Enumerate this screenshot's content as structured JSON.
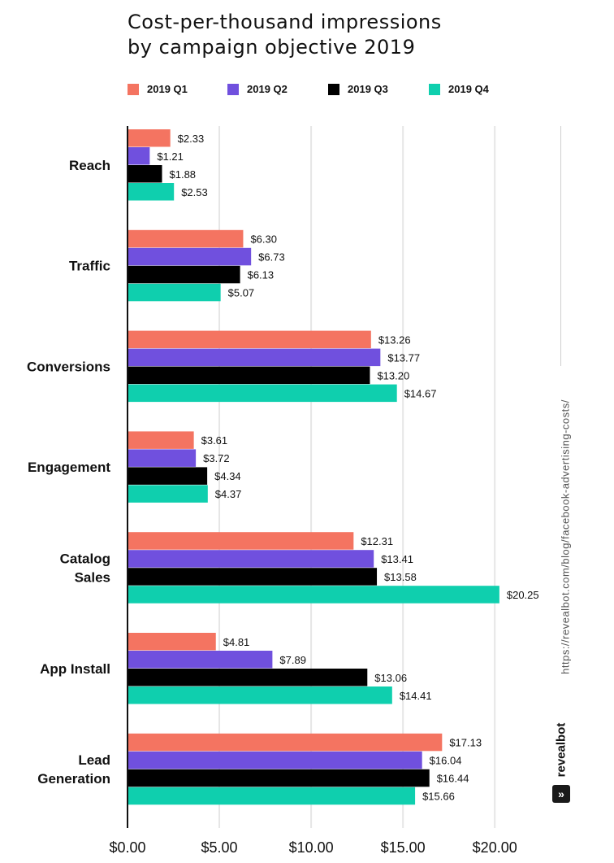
{
  "chart_data": {
    "type": "bar",
    "orientation": "horizontal",
    "title": "Cost-per-thousand impressions by campaign objective 2019",
    "title_lines": [
      "Cost-per-thousand impressions",
      "by campaign objective 2019"
    ],
    "categories": [
      [
        "Reach"
      ],
      [
        "Traffic"
      ],
      [
        "Conversions"
      ],
      [
        "Engagement"
      ],
      [
        "Catalog",
        "Sales"
      ],
      [
        "App Install"
      ],
      [
        "Lead",
        "Generation"
      ]
    ],
    "series": [
      {
        "name": "2019 Q1",
        "color": "#f47461",
        "values": [
          2.33,
          6.3,
          13.26,
          3.61,
          12.31,
          4.81,
          17.13
        ],
        "labels": [
          "$2.33",
          "$6.30",
          "$13.26",
          "$3.61",
          "$12.31",
          "$4.81",
          "$17.13"
        ]
      },
      {
        "name": "2019 Q2",
        "color": "#7050de",
        "values": [
          1.21,
          6.73,
          13.77,
          3.72,
          13.41,
          7.89,
          16.04
        ],
        "labels": [
          "$1.21",
          "$6.73",
          "$13.77",
          "$3.72",
          "$13.41",
          "$7.89",
          "$16.04"
        ]
      },
      {
        "name": "2019 Q3",
        "color": "#000000",
        "values": [
          1.88,
          6.13,
          13.2,
          4.34,
          13.58,
          13.06,
          16.44
        ],
        "labels": [
          "$1.88",
          "$6.13",
          "$13.20",
          "$4.34",
          "$13.58",
          "$13.06",
          "$16.44"
        ]
      },
      {
        "name": "2019 Q4",
        "color": "#0fcfae",
        "values": [
          2.53,
          5.07,
          14.67,
          4.37,
          20.25,
          14.41,
          15.66
        ],
        "labels": [
          "$2.53",
          "$5.07",
          "$14.67",
          "$4.37",
          "$20.25",
          "$14.41",
          "$15.66"
        ]
      }
    ],
    "xlim": [
      0,
      22.6
    ],
    "xticks": [
      0,
      5,
      10,
      15,
      20
    ],
    "xtick_labels": [
      "$0.00",
      "$5.00",
      "$10.00",
      "$15.00",
      "$20.00"
    ],
    "grid": true,
    "legend_position": "top"
  },
  "source_url": "https://revealbot.com/blog/facebook-advertising-costs/",
  "brand": "revealbot"
}
